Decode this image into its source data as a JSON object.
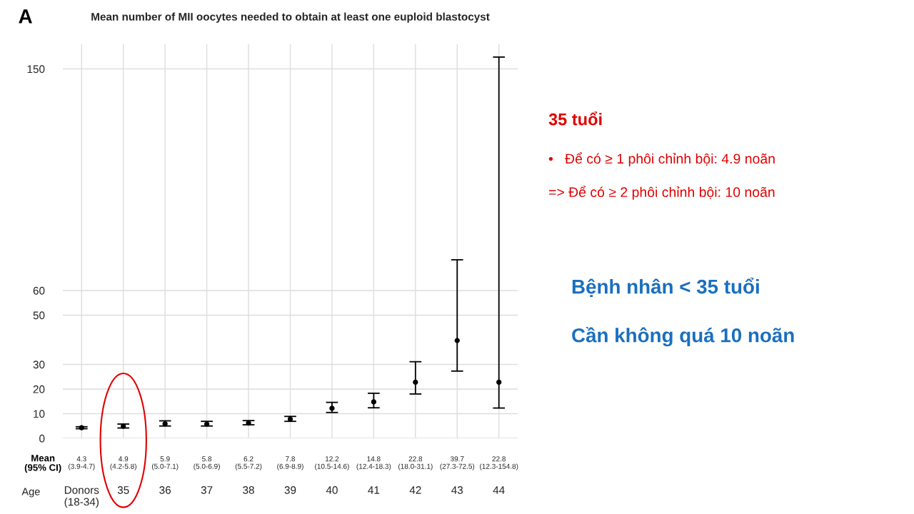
{
  "chart_data": {
    "type": "scatter",
    "title": "Mean number of MII oocytes needed to obtain at least one euploid blastocyst",
    "xlabel": "Age",
    "categories": [
      "Donors\n(18-34)",
      "35",
      "36",
      "37",
      "38",
      "39",
      "40",
      "41",
      "42",
      "43",
      "44"
    ],
    "series": [
      {
        "color": "#000000",
        "values": [
          4.3,
          4.9,
          5.9,
          5.8,
          6.2,
          7.8,
          12.2,
          14.8,
          22.8,
          39.7,
          22.8
        ],
        "errors": [
          [
            3.9,
            4.7
          ],
          [
            4.2,
            5.8
          ],
          [
            5.0,
            7.1
          ],
          [
            5.0,
            6.9
          ],
          [
            5.5,
            7.2
          ],
          [
            6.9,
            8.9
          ],
          [
            10.5,
            14.6
          ],
          [
            12.4,
            18.3
          ],
          [
            18.0,
            31.1
          ],
          [
            27.3,
            72.5
          ],
          [
            12.3,
            154.8
          ]
        ],
        "value_labels": [
          "4.3\n(3.9-4.7)",
          "4.9\n(4.2-5.8)",
          "5.9\n(5.0-7.1)",
          "5.8\n(5.0-6.9)",
          "6.2\n(5.5-7.2)",
          "7.8\n(6.9-8.9)",
          "12.2\n(10.5-14.6)",
          "14.8\n(12.4-18.3)",
          "22.8\n(18.0-31.1)",
          "39.7\n(27.3-72.5)",
          "22.8\n(12.3-154.8)"
        ]
      }
    ],
    "ylim": [
      0,
      160
    ],
    "yticks": [
      0,
      10,
      20,
      30,
      50,
      60,
      150
    ],
    "grid": true,
    "marker": "circle",
    "annotations": [
      "A",
      "Mean\n(95% CI)",
      "35 tuổi",
      "•   Để có ≥ 1 phôi chỉnh bội: 4.9 noãn",
      "=> Để có ≥ 2 phôi chỉnh bội: 10 noãn",
      "Bệnh nhân < 35 tuổi",
      "Cần không quá 10 noãn"
    ]
  }
}
